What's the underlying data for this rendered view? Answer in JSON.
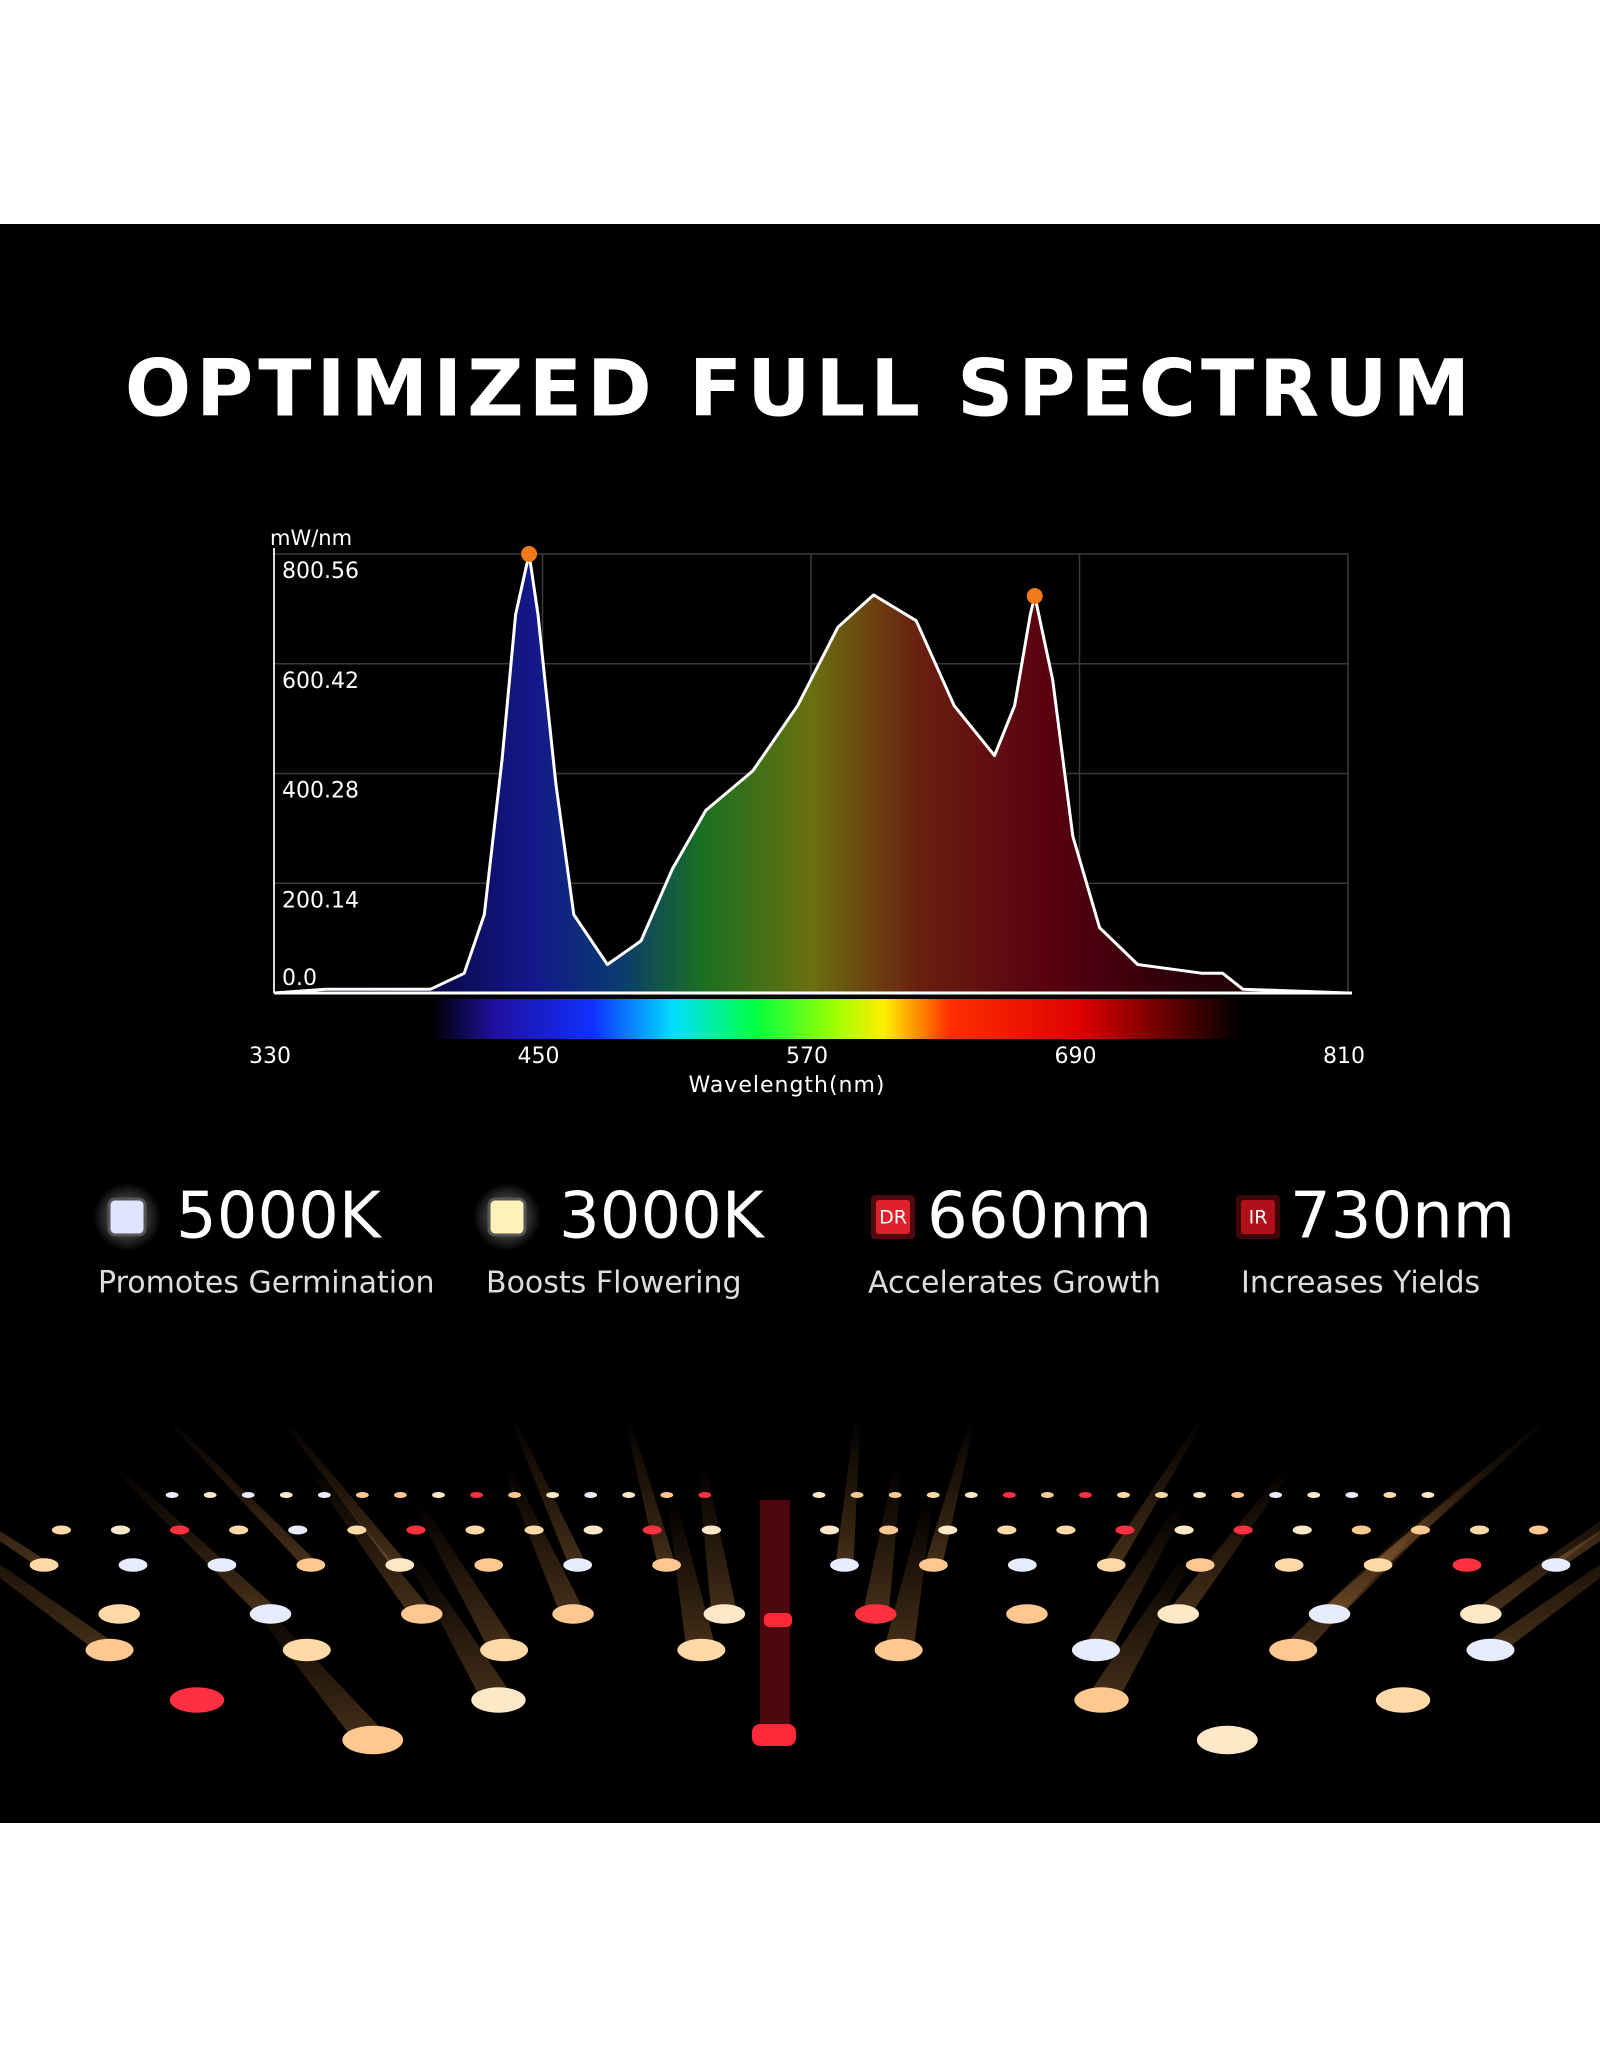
{
  "chart_data": {
    "type": "line",
    "title": "OPTIMIZED FULL SPECTRUM",
    "y_label": "mW/nm",
    "x_label": "Wavelength(nm)",
    "x": [
      330,
      353,
      400,
      415,
      424,
      432,
      438,
      444,
      448,
      456,
      464,
      479,
      494,
      508,
      523,
      544,
      564,
      582,
      598,
      617,
      634,
      652,
      661,
      668,
      670,
      678,
      687,
      699,
      716,
      745,
      754,
      763,
      810
    ],
    "series": [
      {
        "color": "#ffffff",
        "values": [
          0,
          7,
          7,
          36,
          143,
          428,
          690,
          800.56,
          690,
          381,
          143,
          52,
          95,
          226,
          333,
          405,
          524,
          667,
          726,
          679,
          524,
          433,
          524,
          690,
          724,
          571,
          286,
          119,
          52,
          36,
          36,
          7,
          0
        ]
      }
    ],
    "peaks": {
      "color": "#f07a1a",
      "x": [
        444,
        670
      ],
      "values": [
        800.56,
        724
      ]
    },
    "xlim": [
      330,
      810
    ],
    "xticks": [
      330,
      450,
      570,
      690,
      810
    ],
    "ylim": [
      0,
      800.56
    ],
    "yticks": [
      {
        "value": 0,
        "label": "0.0"
      },
      200.14,
      400.28,
      600.42,
      800.56
    ],
    "grid": true
  },
  "features": [
    {
      "heading": "5000K",
      "text": "Promotes Germination",
      "color": "#dde4ff"
    },
    {
      "heading": "3000K",
      "text": "Boosts Flowering",
      "color": "#fff2b8"
    },
    {
      "badge": "DR",
      "heading": "660nm",
      "text": "Accelerates Growth",
      "color": "#e0202a"
    },
    {
      "badge": "IR",
      "heading": "730nm",
      "text": "Increases Yields",
      "color": "#b0101a"
    }
  ]
}
